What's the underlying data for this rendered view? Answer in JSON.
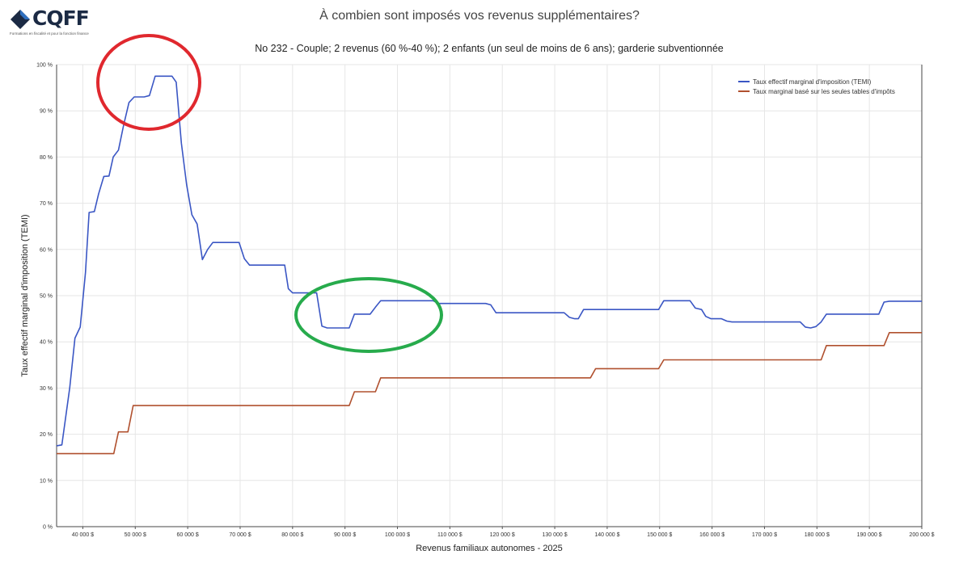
{
  "logo": {
    "text": "CQFF",
    "tagline": "Formations en fiscalité et pour la fonction finance"
  },
  "chart_data": {
    "type": "line",
    "title": "À combien sont imposés vos revenus supplémentaires?",
    "subtitle": "No 232 - Couple; 2 revenus (60 %-40 %); 2 enfants (un seul de moins de 6 ans); garderie subventionnée",
    "xlabel": "Revenus familiaux autonomes - 2025",
    "ylabel": "Taux effectif marginal d'imposition (TEMI)",
    "xlim": [
      35000,
      200000
    ],
    "ylim": [
      0,
      100
    ],
    "grid": true,
    "legend_position": "top-right",
    "x_ticks": [
      40000,
      50000,
      60000,
      70000,
      80000,
      90000,
      100000,
      110000,
      120000,
      130000,
      140000,
      150000,
      160000,
      170000,
      180000,
      190000,
      200000
    ],
    "x_tick_labels": [
      "40 000 $",
      "50 000 $",
      "60 000 $",
      "70 000 $",
      "80 000 $",
      "90 000 $",
      "100 000 $",
      "110 000 $",
      "120 000 $",
      "130 000 $",
      "140 000 $",
      "150 000 $",
      "160 000 $",
      "170 000 $",
      "180 000 $",
      "190 000 $",
      "200 000 $"
    ],
    "y_ticks": [
      0,
      10,
      20,
      30,
      40,
      50,
      60,
      70,
      80,
      90,
      100
    ],
    "y_tick_labels": [
      "0 %",
      "10 %",
      "20 %",
      "30 %",
      "40 %",
      "50 %",
      "60 %",
      "70 %",
      "80 %",
      "90 %",
      "100 %"
    ],
    "series": [
      {
        "name": "Taux effectif marginal d'imposition (TEMI)",
        "color": "#3a56c4",
        "points": [
          [
            35000,
            17.5
          ],
          [
            36000,
            17.7
          ],
          [
            37500,
            30
          ],
          [
            38500,
            40.8
          ],
          [
            39500,
            43.2
          ],
          [
            40500,
            55
          ],
          [
            41200,
            68
          ],
          [
            42200,
            68.2
          ],
          [
            43000,
            72
          ],
          [
            44000,
            75.8
          ],
          [
            45000,
            75.9
          ],
          [
            45800,
            80
          ],
          [
            46800,
            81.5
          ],
          [
            47800,
            87
          ],
          [
            48800,
            91.8
          ],
          [
            49800,
            93
          ],
          [
            51700,
            93
          ],
          [
            52700,
            93.3
          ],
          [
            53800,
            97.5
          ],
          [
            57000,
            97.5
          ],
          [
            57800,
            96.2
          ],
          [
            58800,
            83
          ],
          [
            59800,
            74
          ],
          [
            60800,
            67.5
          ],
          [
            61800,
            65.5
          ],
          [
            62800,
            57.8
          ],
          [
            63800,
            60
          ],
          [
            64800,
            61.5
          ],
          [
            69800,
            61.5
          ],
          [
            70800,
            58
          ],
          [
            71800,
            56.6
          ],
          [
            78500,
            56.6
          ],
          [
            79200,
            51.5
          ],
          [
            80000,
            50.6
          ],
          [
            84600,
            50.6
          ],
          [
            85600,
            43.4
          ],
          [
            86600,
            43
          ],
          [
            90800,
            43
          ],
          [
            91800,
            46
          ],
          [
            94800,
            46
          ],
          [
            95800,
            47.5
          ],
          [
            96800,
            48.9
          ],
          [
            106800,
            48.9
          ],
          [
            107800,
            48.3
          ],
          [
            116800,
            48.3
          ],
          [
            117800,
            48
          ],
          [
            118800,
            46.3
          ],
          [
            126800,
            46.3
          ],
          [
            131800,
            46.3
          ],
          [
            132800,
            45.3
          ],
          [
            133800,
            45
          ],
          [
            134500,
            45
          ],
          [
            135500,
            47
          ],
          [
            149800,
            47
          ],
          [
            150800,
            48.9
          ],
          [
            155800,
            48.9
          ],
          [
            156800,
            47.3
          ],
          [
            158000,
            47
          ],
          [
            158800,
            45.5
          ],
          [
            159800,
            45
          ],
          [
            161800,
            45
          ],
          [
            162800,
            44.5
          ],
          [
            163800,
            44.3
          ],
          [
            176800,
            44.3
          ],
          [
            177800,
            43.2
          ],
          [
            178800,
            43
          ],
          [
            179800,
            43.3
          ],
          [
            180800,
            44.3
          ],
          [
            181800,
            46
          ],
          [
            191800,
            46
          ],
          [
            192800,
            48.6
          ],
          [
            193800,
            48.8
          ],
          [
            200000,
            48.8
          ]
        ]
      },
      {
        "name": "Taux marginal basé sur les seules tables d'impôts",
        "color": "#b0502e",
        "points": [
          [
            35000,
            15.8
          ],
          [
            45900,
            15.8
          ],
          [
            46800,
            20.5
          ],
          [
            48600,
            20.5
          ],
          [
            49600,
            26.2
          ],
          [
            90800,
            26.2
          ],
          [
            91800,
            29.2
          ],
          [
            95800,
            29.2
          ],
          [
            96800,
            32.2
          ],
          [
            136800,
            32.2
          ],
          [
            137800,
            34.2
          ],
          [
            149800,
            34.2
          ],
          [
            150800,
            36.1
          ],
          [
            180800,
            36.1
          ],
          [
            181800,
            39.2
          ],
          [
            192800,
            39.2
          ],
          [
            193800,
            42
          ],
          [
            200000,
            42
          ]
        ]
      }
    ]
  },
  "annotations": [
    {
      "name": "red-circle",
      "color": "#e0282e"
    },
    {
      "name": "green-circle",
      "color": "#27ab4c"
    }
  ]
}
